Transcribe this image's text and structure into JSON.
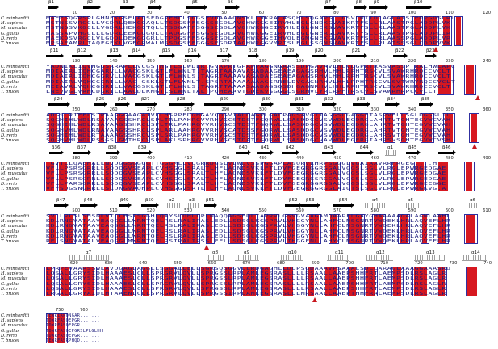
{
  "species": [
    "C. reinhardtii",
    "H. sapiens",
    "M. musculus",
    "G. gallus",
    "D. rerio",
    "T. brucei"
  ],
  "blocks": [
    {
      "structure": [
        "β1",
        "β2",
        "β3",
        "β4",
        "β5",
        "β6",
        "β7",
        "β8",
        "β9",
        "β10"
      ],
      "numbers": [
        "10",
        "20",
        "30",
        "40",
        "50",
        "60",
        "70",
        "80",
        "90",
        "100",
        "110",
        "120"
      ],
      "sequences": [
        "MAFESQGRSPLGHNFKGSELALSFDGVEHLLSGGSEVDAAAGNSKLLVKRALASQHLSQGAPS..GSVLRTIDLAGLATSTEDPGDSLRL",
        "MSTNSSVRGCLLVGDRLQEKGGAQLLTSDGSFFSGGSEGDLAVGHWKGGEIRVHLEGLGNDKGVAIKRTFSLLRLAASTPGLADDPLVK",
        "MSTNGSVKGCLLVGDRLHEKGGTQLLTSDGAFFSGGSEGDLAVGHWKGGEIRVHLEGLGNEKGVAVKRTFSLLRLAASTPGLADDPLVK",
        "MASSAPVHGCLLLGDRLEEKGGGQLLTADGGFFSGGSEGDLAVGHWKGGEIRVHLEGLGNERGLAVKRTYSLLRLAASTPGLADDPLIR",
        "MAEKQSVRGCLVLGDQLQEKGGGRLLTPDGSFFSGGSEGDLAVGHWKGGEIHVQLEGMGNEKGVAVKRTFSLLRLAASSPGLADDPLVR",
        "MPSAEAMRLTAQFGEKLVGEGRWALMSSDGSFFGGGSEGDRIAGHWRGGVMRISLEGLSSGNSVAVKRTFSLLRLATSSSGLCDDPVVK"
      ]
    },
    {
      "structure": [
        "β11",
        "β12",
        "β13",
        "β14",
        "β15",
        "β16",
        "β17",
        "β18",
        "β19",
        "β20",
        "β21",
        "β22",
        "β23"
      ],
      "numbers": [
        "130",
        "140",
        "150",
        "160",
        "170",
        "180",
        "190",
        "200",
        "210",
        "220",
        "230",
        "240"
      ],
      "sequences": [
        "YADNIKLIQVNGGSARAPLLVCGSTHGTLSLWDLR.GVAPRTGPAPPAGGNGAASSDPGAVAVLHLVDGPRTRASVASSPTRALHWLAPC",
        "MDIAIRLIQHCGARVLLVACGSKLGTLFLWNLT.TAGRTAAAAVASADAAGEAEAGAGSRHVLHHLRPHTRSCVLSVAWRHRQCCVCLT",
        "MDIAIRLIQHCGGRVLLVACGSKLGTLFLWNLS.TAGRTAAAAVASADAEGEAEAGAGSRHVLHHLRPHTRSCVLSVAWRHRQCCVCLT",
        "MDIAIRLVQHCGGRILLVAC GSKLGTLFLWNLT.SPSRTAAAAAAAAGSRRELDVGAGNRHVLHHLRPHTRSCVLSVTWRYRQCCVCLT",
        "MEIAVRLVQHCGGRILLVACGSKLGTLFLWNLS.TAGRTTAAAASAADAGSQSDHGAGNRHVLHHLRPHTRSCVLSVAWRHRQCCVCLT",
        "LNEVVGLVRHCDGRILLAACDLKMGTLSLWNLTALTPQMEAAVTGDEKVSGGGLSGRHVLYRLRPHTRSCVLSVAWRHRPCCVCLT"
      ]
    },
    {
      "structure": [
        "β24",
        "β25",
        "β26",
        "β27",
        "β28",
        "β29",
        "β30",
        "β31",
        "β32",
        "β33",
        "β34",
        "β35"
      ],
      "numbers": [
        "250",
        "260",
        "270",
        "280",
        "290",
        "300",
        "310",
        "320",
        "330",
        "340",
        "350",
        "360"
      ],
      "sequences": [
        "ADGSLRIFELSTPAAGGGAAGATVLLHSRPEDGHGAVQDGVIALDAGPLGALPAGSAVGTTAGGSLGAGGFTASPVHLLSGLDGGSLIL",
        "SQGHIHLWDLRSAVAAGSSHRCLSPLTRLPAHRGVVRHVGCSTDSTFGQRWLLSASDDGCVSVWDLEGDRGLAHRTVTGHTEGVWCVAH",
        "SQGHIHLWDLRSAVAAGSSHRCLSPLTRLPAHRGVVRHVGCSTDSTFGQRWLLSASDDGCVSVWDLEGDRGLAHRTVTGHTEGVWCVAH",
        "SQGHVHLWDLRNAVAAGSSHRCLSPLARLAAHRGVVRHVSCATDSSFGQRWLLSASDDGCVSVWDLEGDRGLAHRTVTGHTEGVWCVAH",
        "SQGHIHLWDLRTAAAAGSSHRCVSPLSRLPAHRGVVRHVGCSTDSTFGQRWLLSASDDGCVSVWDLEGDRGLAHRSVTGHTEGVWCVAH",
        "SQGHVHLWDLRSSGSLGMTHRCVSPLAKLSPHRGVVRHVGCSTDATFGQRWLLSASDDGCVAVWDLEGERGIAHRSVSGHTEGVWCVSH"
      ]
    },
    {
      "structure": [
        "β36",
        "β37",
        "β38",
        "β39",
        "β40",
        "β41",
        "β42",
        "β43",
        "β44",
        "α1",
        "β45",
        "β46"
      ],
      "numbers": [
        "380",
        "390",
        "400",
        "410",
        "420",
        "430",
        "440",
        "450",
        "460",
        "470",
        "480",
        "490"
      ],
      "sequences": [
        "TGVTLLQAEHALLNVDGGSGGGGTTGGGMLLVQGRRDGSLVLWDVSSPGGAPLASQRVLHRPSGGGLVGAIAAVRRHRGEG....H",
        "VFLLPSRSGRRLLSQDQGVSEAPLCVHSGGLSRALTLHFLAQNDSVKLFTLDVFGEGRGGRGGALVGGSLSGLVLRGLEPWRGEDGAE",
        "VFLLPSRSGRRLLSQDQGVSEAPLCVHSGGLSRALTLHFLAQNDSVKLFTLDVFGEGRGGRGGALVGGSLSGLVLRGLEPWRGEDGAE",
        "VFLLPSRSGRRLLSQDQGVSEAPLCVHSGGLSRALTLHFLAQNDSVKLFTLDVFGEGRGSRGGALVGGSLSGLVLRGLEPWRGEDGAE",
        "VFLLPARSGRRLLSQDQGVSEAPLCVHSGGLSRALTLHFLAQNDSVKLFTLDVFGEGRGGRGGALVGGSLSGLVLRGLEPWRGEEGGE",
        "VFFSDGSNGRRLLSLDNGVAQHPLCVHSGGVSRTLTLHFLAQNDSVKLFTLDVFGEGRGGRGGLAIGTSLSGLVLRGLEPWRGKVG.A"
      ]
    },
    {
      "structure": [
        "β47",
        "β48",
        "β49",
        "β50",
        "α2",
        "α3",
        "β51",
        "β52",
        "β53",
        "β54",
        "α4",
        "α5",
        "α6"
      ],
      "numbers": [
        "500",
        "510",
        "520",
        "530",
        "540",
        "550",
        "560",
        "570",
        "580",
        "590",
        "600",
        "610"
      ],
      "sequences": [
        "SVLLRLSLSHSNLVTLLHSTSGGHLQAYSLDHLLPLNAQQAGSEDLTAPRRLGSVGVAAGAMQAAPFLGAYGHAAAAAGALAGNLAAHL",
        "KDLRNGVATAAVEAQGGLLWRNTQELRSLRALIPASLEDLLSDSGLKGSPRVLVHGGYNLLAHFCLNSGNRTVWQEKLHRLAQVEFLHR",
        "KDLRNGVATAAVEAQGGLLWRNTQELRSLRALIPASLEDLLSDSGLKGSPRVLVHGGYNLLAHFCLNSGNRTVWQEKLHRLAQVEFLHR",
        "KDLRNGVATAAVEAQGGLLWRNTQELRSLRALIPASLEDLLSDSGLKGSPRVLVHGGYNLLAHFCLNSGNRTVWQEKLHRLAQVEFLHR",
        "KDLRNGVATAAVEAQGGLLWRNTQELRSLRALIPASLEDLLSDSGLKGSPRVLVHGGYNLLAHFCLNSGNRTVWQEKLHRLAQVEFLHR",
        "RELSNGVATALVEAQGGLMWRNTQELRSIRALIPSSLEELLSDSGLKGSPRVLIHGGFNLLAHYCLNSGNRTVWQEKLHRLAQVEFLHR"
      ]
    },
    {
      "structure": [
        "α7",
        "α8",
        "α9",
        "α10",
        "α11",
        "α12",
        "α13",
        "α14"
      ],
      "numbers": [
        "620",
        "630",
        "640",
        "650",
        "660",
        "670",
        "680",
        "690",
        "700",
        "710",
        "720",
        "730",
        "740"
      ],
      "sequences": [
        "LPRPEVAARSSWLAVDGAGLAGGLLSGGALLELLSGRSQSGGVLLRDGAGHLLDLPSGDAAAVPSAAALSDLLARAGLAAAGGAAASRD",
        "LQSALLGRYSIDLHAAAESLCLLSPRGRVLQVLLSPRGSSLRPLAMLEGSRASLLLLRSAALLAAEPSHHFRTLAEMPSDLRSLAGLR",
        "LQSALLGRYSIDLHAAAESLCLLSPRGRVLQVLLSPRGSSLRPLAMLEGSRASLLLLRSAALLAAEPSHHFRTLAEMPSDLRSLAGLR",
        "LQSALLGRYSIDLHAAAESLCLLSPRGRVLQVLLSPRGSSLRPLAMLEGSRASLLLLRSAALLAAEPSHHFRTLAEMPSDLRSLAGLR",
        "LQSALLGRYSIDLHAAAESLCLLSPRGRVLQVLLSPRGSSLRPLAMLEGSRASLLLLRSAALLAAEPSHHFRTLAEMPSDLRSLAGLR",
        "LRGALLGRYAIDLHTAAENLCLLSPRGRVLQVLLSPRGSSIRPLAMLEGSRASLLLMRSAALLAAEPTHHFRALAEMPSDLRSLAGLR"
      ]
    },
    {
      "structure": [],
      "numbers": [
        "750",
        "760"
      ],
      "sequences": [
        "TEWRIAPQNGAR.......",
        "TDWRFASQEPGR.......",
        "TDWRFASQEPGR.......",
        "TDWRFASQEPGRSLPLGLHH",
        "TDWRFASQEPGR.......",
        "TEWRFASRPHQD......."
      ]
    }
  ]
}
